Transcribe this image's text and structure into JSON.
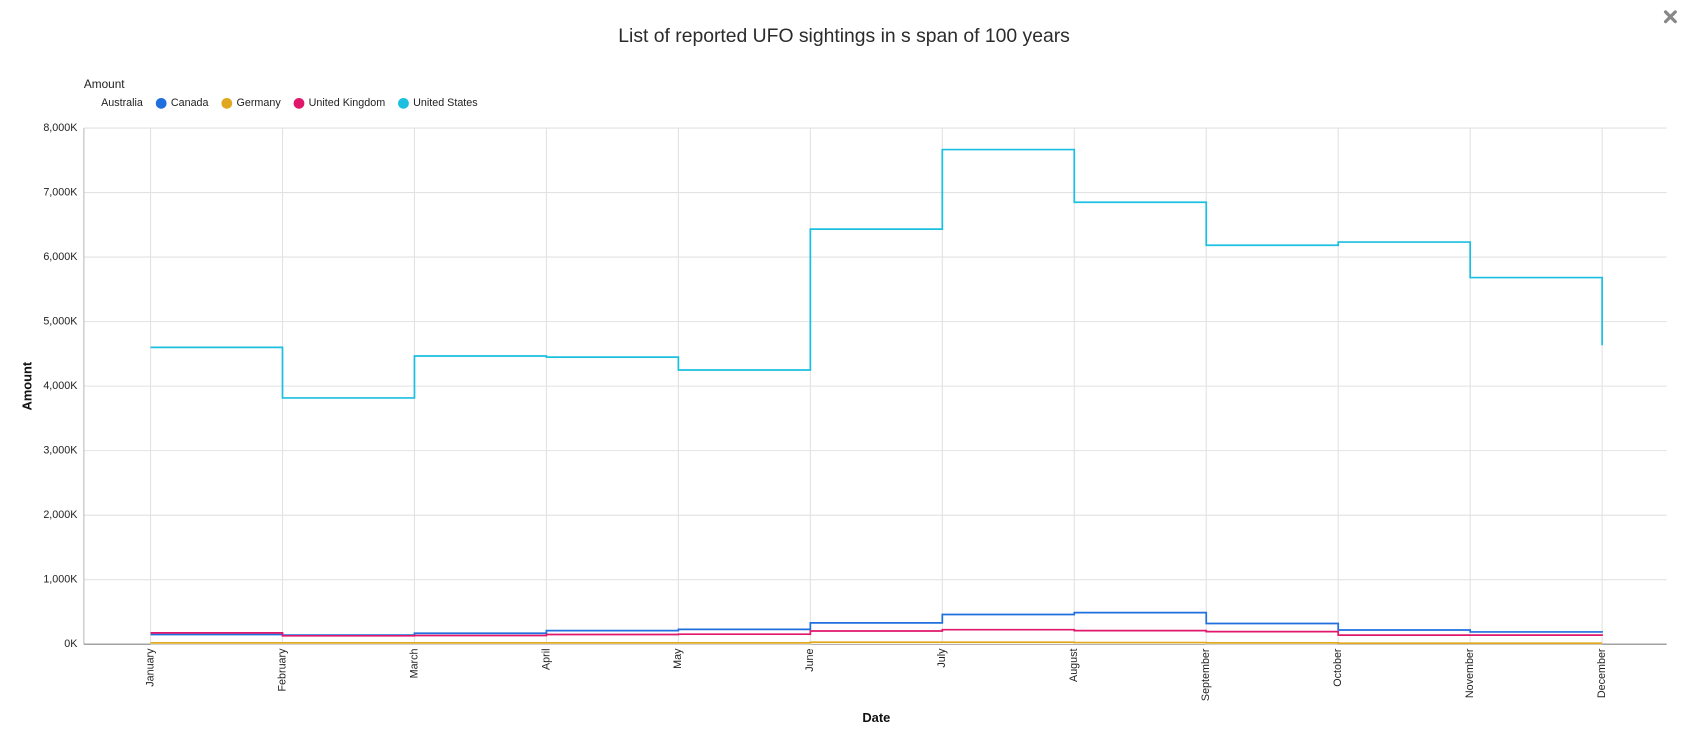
{
  "chart_data": {
    "type": "step",
    "title": "List of reported UFO sightings in s span of 100 years",
    "legend_title": "Amount",
    "x_label": "Date",
    "y_label": "Amount",
    "categories": [
      "January",
      "February",
      "March",
      "April",
      "May",
      "June",
      "July",
      "August",
      "September",
      "October",
      "November",
      "December"
    ],
    "series": [
      {
        "name": "Australia",
        "color": "#ffffff",
        "values": [
          10000,
          10000,
          10000,
          10000,
          10000,
          15000,
          15000,
          15000,
          10000,
          10000,
          10000,
          10000
        ]
      },
      {
        "name": "Canada",
        "color": "#1f6fde",
        "values": [
          150000,
          140000,
          170000,
          210000,
          230000,
          330000,
          460000,
          490000,
          320000,
          220000,
          190000,
          180000
        ]
      },
      {
        "name": "Germany",
        "color": "#e0a81e",
        "values": [
          20000,
          20000,
          20000,
          20000,
          20000,
          30000,
          30000,
          25000,
          20000,
          15000,
          15000,
          15000
        ]
      },
      {
        "name": "United Kingdom",
        "color": "#e0176b",
        "values": [
          175000,
          130000,
          135000,
          150000,
          155000,
          205000,
          225000,
          210000,
          195000,
          140000,
          140000,
          130000
        ]
      },
      {
        "name": "United States",
        "color": "#1bbfe0",
        "values": [
          4600000,
          3817000,
          4467000,
          4450000,
          4250000,
          6433000,
          7667000,
          6850000,
          6183000,
          6233000,
          5683000,
          4633000
        ]
      }
    ],
    "ylim": [
      0,
      8000000
    ],
    "yticks": [
      {
        "value": 0,
        "label": "0K"
      },
      {
        "value": 1000000,
        "label": "1,000K"
      },
      {
        "value": 2000000,
        "label": "2,000K"
      },
      {
        "value": 3000000,
        "label": "3,000K"
      },
      {
        "value": 4000000,
        "label": "4,000K"
      },
      {
        "value": 5000000,
        "label": "5,000K"
      },
      {
        "value": 6000000,
        "label": "6,000K"
      },
      {
        "value": 7000000,
        "label": "7,000K"
      },
      {
        "value": 8000000,
        "label": "8,000K"
      }
    ],
    "grid": true
  }
}
